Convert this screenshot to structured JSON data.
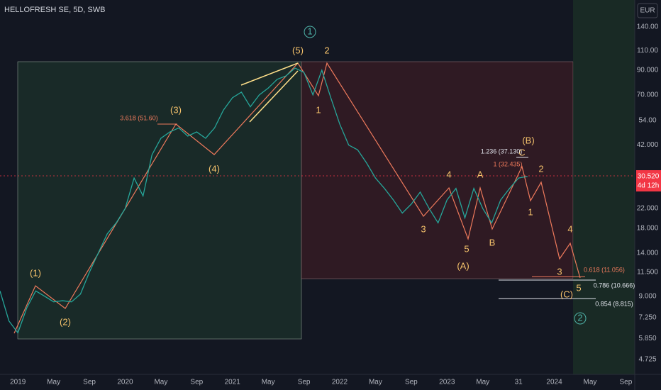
{
  "chart_data": {
    "type": "line",
    "title": "HELLOFRESH SE, 5D, SWB",
    "currency": "EUR",
    "price_label": "30.520",
    "countdown": "4d 12h",
    "color": "#26a69a",
    "log_scale": true,
    "x": [
      "2018-11",
      "2018-12",
      "2019-01",
      "2019-02",
      "2019-03",
      "2019-04",
      "2019-05",
      "2019-06",
      "2019-07",
      "2019-08",
      "2019-09",
      "2019-10",
      "2019-11",
      "2019-12",
      "2020-01",
      "2020-02",
      "2020-03",
      "2020-04",
      "2020-05",
      "2020-06",
      "2020-07",
      "2020-08",
      "2020-09",
      "2020-10",
      "2020-11",
      "2020-12",
      "2021-01",
      "2021-02",
      "2021-03",
      "2021-04",
      "2021-05",
      "2021-06",
      "2021-07",
      "2021-08",
      "2021-09",
      "2021-10",
      "2021-11",
      "2021-12",
      "2022-01",
      "2022-02",
      "2022-03",
      "2022-04",
      "2022-05",
      "2022-06",
      "2022-07",
      "2022-08",
      "2022-09",
      "2022-10",
      "2022-11",
      "2022-12",
      "2023-01",
      "2023-02",
      "2023-03",
      "2023-04",
      "2023-05",
      "2023-06",
      "2023-07",
      "2023-08",
      "2023-09",
      "2023-10"
    ],
    "values": [
      9.5,
      7,
      6.2,
      8,
      9.5,
      9,
      8.5,
      8.6,
      8.5,
      9.2,
      11.5,
      14,
      17,
      19,
      22,
      30,
      25,
      38,
      45,
      48,
      50,
      46,
      48,
      45,
      50,
      60,
      68,
      72,
      62,
      70,
      75,
      82,
      85,
      92,
      88,
      70,
      90,
      68,
      52,
      42,
      40,
      35,
      30,
      27,
      24,
      21,
      23,
      26,
      22,
      19,
      24,
      27,
      20,
      27,
      22,
      19,
      24,
      27,
      30,
      30.52
    ],
    "xlim": [
      "2018-11",
      "2024-10"
    ],
    "xticks": [
      {
        "value": "2019-01",
        "label": "2019"
      },
      {
        "value": "2019-05",
        "label": "May"
      },
      {
        "value": "2019-09",
        "label": "Sep"
      },
      {
        "value": "2020-01",
        "label": "2020"
      },
      {
        "value": "2020-05",
        "label": "May"
      },
      {
        "value": "2020-09",
        "label": "Sep"
      },
      {
        "value": "2021-01",
        "label": "2021"
      },
      {
        "value": "2021-05",
        "label": "May"
      },
      {
        "value": "2021-09",
        "label": "Sep"
      },
      {
        "value": "2022-01",
        "label": "2022"
      },
      {
        "value": "2022-05",
        "label": "May"
      },
      {
        "value": "2022-09",
        "label": "Sep"
      },
      {
        "value": "2023-01",
        "label": "2023"
      },
      {
        "value": "2023-05",
        "label": "May"
      },
      {
        "value": "2023-09",
        "label": "31"
      },
      {
        "value": "2024-01",
        "label": "2024"
      },
      {
        "value": "2024-05",
        "label": "May"
      },
      {
        "value": "2024-09",
        "label": "Sep"
      }
    ],
    "ylim": [
      4.06,
      184
    ],
    "yticks": [
      {
        "value": 4.725,
        "label": "4.725"
      },
      {
        "value": 5.85,
        "label": "5.850"
      },
      {
        "value": 7.25,
        "label": "7.250"
      },
      {
        "value": 9,
        "label": "9.000"
      },
      {
        "value": 11.5,
        "label": "11.500"
      },
      {
        "value": 14,
        "label": "14.000"
      },
      {
        "value": 18,
        "label": "18.000"
      },
      {
        "value": 22,
        "label": "22.000"
      },
      {
        "value": 42,
        "label": "42.000"
      },
      {
        "value": 54,
        "label": "54.00"
      },
      {
        "value": 70,
        "label": "70.000"
      },
      {
        "value": 90,
        "label": "90.000"
      },
      {
        "value": 110,
        "label": "110.00"
      },
      {
        "value": 140,
        "label": "140.00"
      }
    ],
    "annotations": [
      "1",
      "(5)",
      "2",
      "(1)",
      "(2)",
      "(3)",
      "(4)",
      "1",
      "3.618 (51.60)",
      "4",
      "A",
      "3",
      "5",
      "B",
      "(A)",
      "(B)",
      "C",
      "1.236 (37.130)",
      "1 (32.435)",
      "2",
      "1",
      "4",
      "3",
      "0.618 (11.056)",
      "5",
      "(C)",
      "0.786 (10.666)",
      "0.854 (8.815)",
      "2"
    ]
  }
}
